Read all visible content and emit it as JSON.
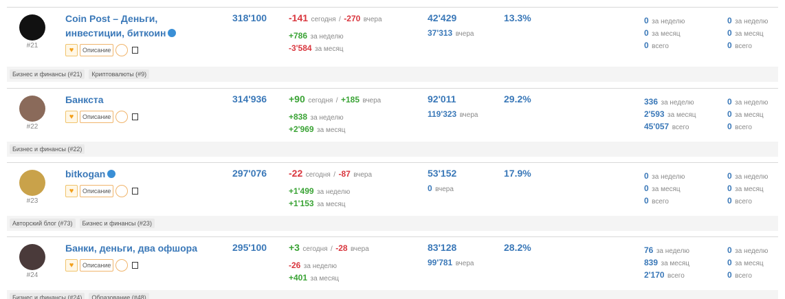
{
  "labels": {
    "today": "сегодня",
    "separator": "/",
    "yesterday": "вчера",
    "week": "за неделю",
    "month": "за месяц",
    "total": "всего",
    "description": "Описание"
  },
  "rows": [
    {
      "rank": "#21",
      "name": "Coin Post – Деньги, инвестиции, биткоин",
      "verified": true,
      "subscribers": "318'100",
      "today": "-141",
      "yesterday": "-270",
      "week": "+786",
      "month": "-3'584",
      "reach": "42'429",
      "reach_yesterday": "37'313",
      "err": "13.3%",
      "mentions": {
        "week": "0",
        "month": "0",
        "total": "0"
      },
      "mentions_other": {
        "week": "0",
        "month": "0",
        "total": "0"
      },
      "tags": [
        "Бизнес и финансы (#21)",
        "Криптовалюты (#9)"
      ]
    },
    {
      "rank": "#22",
      "name": "Банкста",
      "verified": false,
      "subscribers": "314'936",
      "today": "+90",
      "yesterday": "+185",
      "week": "+838",
      "month": "+2'969",
      "reach": "92'011",
      "reach_yesterday": "119'323",
      "err": "29.2%",
      "mentions": {
        "week": "336",
        "month": "2'593",
        "total": "45'057"
      },
      "mentions_other": {
        "week": "0",
        "month": "0",
        "total": "0"
      },
      "tags": [
        "Бизнес и финансы (#22)"
      ]
    },
    {
      "rank": "#23",
      "name": "bitkogan",
      "verified": true,
      "subscribers": "297'076",
      "today": "-22",
      "yesterday": "-87",
      "week": "+1'499",
      "month": "+1'153",
      "reach": "53'152",
      "reach_yesterday": "0",
      "err": "17.9%",
      "mentions": {
        "week": "0",
        "month": "0",
        "total": "0"
      },
      "mentions_other": {
        "week": "0",
        "month": "0",
        "total": "0"
      },
      "tags": [
        "Авторский блог (#73)",
        "Бизнес и финансы (#23)"
      ]
    },
    {
      "rank": "#24",
      "name": "Банки, деньги, два офшора",
      "verified": false,
      "subscribers": "295'100",
      "today": "+3",
      "yesterday": "-28",
      "week": "-26",
      "month": "+401",
      "reach": "83'128",
      "reach_yesterday": "99'781",
      "err": "28.2%",
      "mentions": {
        "week": "76",
        "month": "839",
        "total": "2'170"
      },
      "mentions_other": {
        "week": "0",
        "month": "0",
        "total": "0"
      },
      "tags": [
        "Бизнес и финансы (#24)",
        "Образование (#48)"
      ]
    }
  ]
}
